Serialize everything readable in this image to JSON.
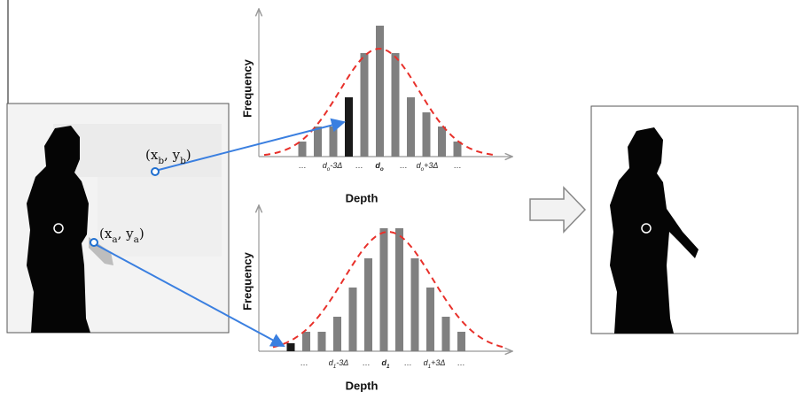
{
  "points": [
    {
      "parts": [
        {
          "text": "(x"
        },
        {
          "text": "b",
          "sub": true
        },
        {
          "text": ", y"
        },
        {
          "text": "b",
          "sub": true
        },
        {
          "text": ")"
        }
      ]
    },
    {
      "parts": [
        {
          "text": "(x"
        },
        {
          "text": "a",
          "sub": true
        },
        {
          "text": ", y"
        },
        {
          "text": "a",
          "sub": true
        },
        {
          "text": ")"
        }
      ]
    }
  ],
  "histograms": [
    {
      "y_label": "Frequency",
      "x_label": "Depth",
      "bar_color": "#808080",
      "highlight_color": "#1a1a1a",
      "highlight_bar": 3,
      "bars": [
        17,
        34,
        34,
        67,
        117,
        148,
        117,
        67,
        50,
        34,
        17
      ],
      "tick_labels": [
        {
          "parts": [
            {
              "text": "…"
            }
          ]
        },
        {
          "parts": [
            {
              "text": "d"
            },
            {
              "text": "o",
              "sub": true
            },
            {
              "text": "-3Δ"
            }
          ]
        },
        {
          "parts": [
            {
              "text": "…"
            }
          ]
        },
        {
          "parts": [
            {
              "text": "d"
            },
            {
              "text": "o",
              "sub": true
            }
          ],
          "bold": true
        },
        {
          "parts": [
            {
              "text": "…"
            }
          ]
        },
        {
          "parts": [
            {
              "text": "d"
            },
            {
              "text": "o",
              "sub": true
            },
            {
              "text": "+3Δ"
            }
          ]
        },
        {
          "parts": [
            {
              "text": "…"
            }
          ]
        }
      ]
    },
    {
      "y_label": "Frequency",
      "x_label": "Depth",
      "bar_color": "#808080",
      "highlight_color": "#1a1a1a",
      "highlight_bar": 0,
      "bars": [
        9,
        22,
        22,
        39,
        72,
        105,
        139,
        139,
        105,
        72,
        39,
        22
      ],
      "tick_labels": [
        {
          "parts": [
            {
              "text": "…"
            }
          ]
        },
        {
          "parts": [
            {
              "text": "d"
            },
            {
              "text": "1",
              "sub": true
            },
            {
              "text": "-3Δ"
            }
          ]
        },
        {
          "parts": [
            {
              "text": "…"
            }
          ]
        },
        {
          "parts": [
            {
              "text": "d"
            },
            {
              "text": "1",
              "sub": true
            }
          ],
          "bold": true
        },
        {
          "parts": [
            {
              "text": "…"
            }
          ]
        },
        {
          "parts": [
            {
              "text": "d"
            },
            {
              "text": "1",
              "sub": true
            },
            {
              "text": "+3Δ"
            }
          ]
        },
        {
          "parts": [
            {
              "text": "…"
            }
          ]
        }
      ]
    }
  ]
}
